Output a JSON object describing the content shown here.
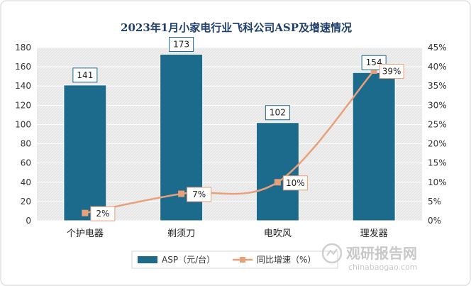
{
  "chart_data": {
    "type": "bar",
    "title": "2023年1月小家电行业飞科公司ASP及增速情况",
    "categories": [
      "个护电器",
      "剃须刀",
      "电吹风",
      "理发器"
    ],
    "series": [
      {
        "name": "ASP（元/台）",
        "kind": "bar",
        "axis": "left",
        "values": [
          141,
          173,
          102,
          154
        ],
        "labels": [
          "141",
          "173",
          "102",
          "154"
        ],
        "color": "#1c6a8c"
      },
      {
        "name": "同比增速（%）",
        "kind": "line",
        "axis": "right",
        "values": [
          2,
          7,
          10,
          39
        ],
        "labels": [
          "2%",
          "7%",
          "10%",
          "39%"
        ],
        "color": "#e8a07a"
      }
    ],
    "ylim_left": [
      0,
      180
    ],
    "yticks_left": [
      "0",
      "20",
      "40",
      "60",
      "80",
      "100",
      "120",
      "140",
      "160",
      "180"
    ],
    "ylim_right": [
      0,
      45
    ],
    "yticks_right": [
      "0%",
      "5%",
      "10%",
      "15%",
      "20%",
      "25%",
      "30%",
      "35%",
      "40%",
      "45%"
    ],
    "xlabel": "",
    "ylabel": "",
    "legend_position": "bottom-center"
  },
  "watermark": {
    "name": "观研报告网",
    "url": "chinabaogao.com"
  },
  "colors": {
    "plot_bg": "#ececec",
    "border": "#e0e0e0",
    "title": "#1f3f6b"
  }
}
